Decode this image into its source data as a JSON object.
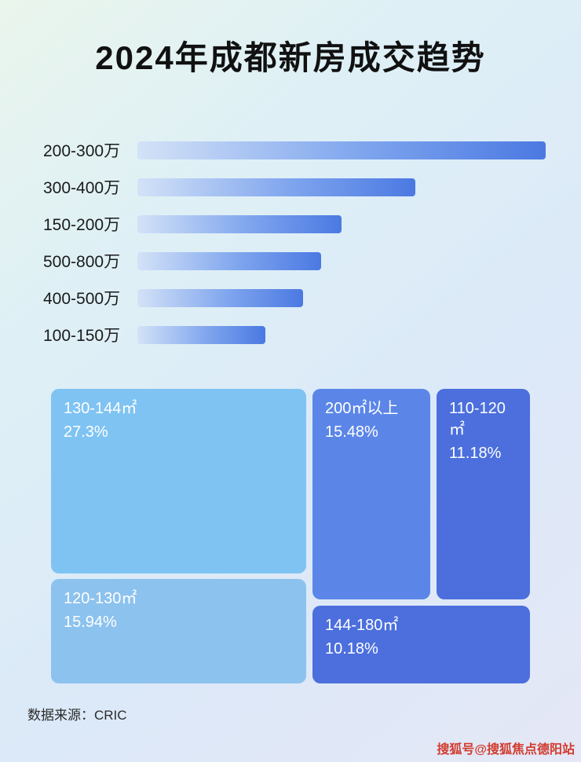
{
  "page": {
    "title": "2024年成都新房成交趋势",
    "source_label": "数据来源：CRIC",
    "watermark": "搜狐号@搜狐焦点德阳站"
  },
  "colors": {
    "bar_gradient_start": "#d3e2f7",
    "bar_gradient_end": "#4b79e2",
    "treemap_light_blue": "#7fc3f3",
    "treemap_light_blue_2": "#8cc2ee",
    "treemap_medium_blue": "#5b86e8",
    "treemap_royal_blue": "#4c6fdd",
    "title_color": "#111111",
    "watermark_color": "#d23c2e"
  },
  "chart_data": [
    {
      "type": "bar",
      "orientation": "horizontal",
      "title": "2024年成都新房成交趋势",
      "categories": [
        "200-300万",
        "300-400万",
        "150-200万",
        "500-800万",
        "400-500万",
        "100-150万"
      ],
      "values": [
        100,
        68,
        50,
        45,
        40.6,
        31.3
      ],
      "values_note": "no numeric axis shown; values are bar lengths as % of the longest bar",
      "xlabel": "",
      "ylabel": "",
      "grid": false,
      "legend": false
    },
    {
      "type": "treemap",
      "title": "",
      "items": [
        {
          "label": "130-144㎡",
          "value": 27.3,
          "display": "27.3%"
        },
        {
          "label": "200㎡以上",
          "value": 15.48,
          "display": "15.48%"
        },
        {
          "label": "110-120㎡",
          "value": 11.18,
          "display": "11.18%"
        },
        {
          "label": "120-130㎡",
          "value": 15.94,
          "display": "15.94%"
        },
        {
          "label": "144-180㎡",
          "value": 10.18,
          "display": "10.18%"
        }
      ]
    }
  ]
}
